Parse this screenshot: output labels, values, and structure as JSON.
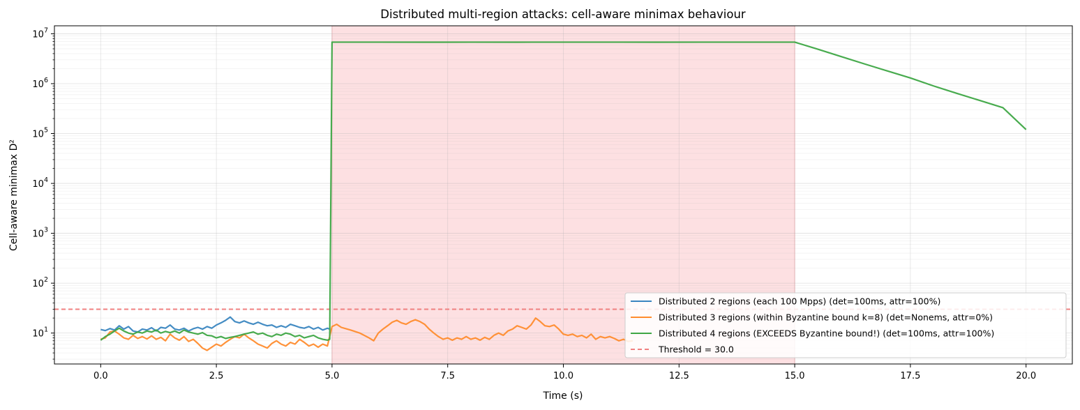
{
  "chart_data": {
    "type": "line",
    "title": "Distributed multi-region attacks: cell-aware minimax behaviour",
    "xlabel": "Time (s)",
    "ylabel": "Cell-aware minimax D²",
    "xlim": [
      -1.0,
      21.0
    ],
    "ylim_log10": [
      0.38,
      7.16
    ],
    "y_scale": "log",
    "grid": true,
    "legend_position": "lower-right",
    "x_ticks": [
      {
        "value": 0.0,
        "label": "0.0"
      },
      {
        "value": 2.5,
        "label": "2.5"
      },
      {
        "value": 5.0,
        "label": "5.0"
      },
      {
        "value": 7.5,
        "label": "7.5"
      },
      {
        "value": 10.0,
        "label": "10.0"
      },
      {
        "value": 12.5,
        "label": "12.5"
      },
      {
        "value": 15.0,
        "label": "15.0"
      },
      {
        "value": 17.5,
        "label": "17.5"
      },
      {
        "value": 20.0,
        "label": "20.0"
      }
    ],
    "y_ticks": [
      {
        "value": 10,
        "base": "10",
        "exp": "1"
      },
      {
        "value": 100,
        "base": "10",
        "exp": "2"
      },
      {
        "value": 1000,
        "base": "10",
        "exp": "3"
      },
      {
        "value": 10000,
        "base": "10",
        "exp": "4"
      },
      {
        "value": 100000,
        "base": "10",
        "exp": "5"
      },
      {
        "value": 1000000,
        "base": "10",
        "exp": "6"
      },
      {
        "value": 10000000,
        "base": "10",
        "exp": "7"
      }
    ],
    "attack_window": {
      "start": 5.0,
      "end": 15.0,
      "color": "#fde0e2"
    },
    "threshold": {
      "value": 30.0,
      "label": "Threshold = 30.0",
      "color": "#f08080"
    },
    "series": [
      {
        "name": "Distributed 2 regions (each 100 Mpps) (det=100ms, attr=100%)",
        "color": "#3a86c0",
        "points": [
          [
            0.0,
            11.8
          ],
          [
            0.1,
            11.2
          ],
          [
            0.2,
            12.3
          ],
          [
            0.3,
            11.5
          ],
          [
            0.4,
            14.0
          ],
          [
            0.5,
            12.0
          ],
          [
            0.6,
            13.5
          ],
          [
            0.7,
            11.0
          ],
          [
            0.8,
            10.5
          ],
          [
            0.9,
            12.0
          ],
          [
            1.0,
            11.5
          ],
          [
            1.1,
            12.8
          ],
          [
            1.2,
            11.0
          ],
          [
            1.3,
            13.0
          ],
          [
            1.4,
            12.5
          ],
          [
            1.5,
            14.5
          ],
          [
            1.6,
            12.0
          ],
          [
            1.7,
            11.5
          ],
          [
            1.8,
            12.5
          ],
          [
            1.9,
            11.0
          ],
          [
            2.0,
            12.2
          ],
          [
            2.1,
            13.0
          ],
          [
            2.2,
            12.0
          ],
          [
            2.3,
            13.5
          ],
          [
            2.4,
            12.5
          ],
          [
            2.5,
            14.5
          ],
          [
            2.6,
            16.0
          ],
          [
            2.7,
            18.0
          ],
          [
            2.8,
            21.0
          ],
          [
            2.9,
            17.0
          ],
          [
            3.0,
            16.0
          ],
          [
            3.1,
            17.5
          ],
          [
            3.2,
            16.0
          ],
          [
            3.3,
            15.0
          ],
          [
            3.4,
            16.5
          ],
          [
            3.5,
            15.0
          ],
          [
            3.6,
            14.0
          ],
          [
            3.7,
            14.5
          ],
          [
            3.8,
            13.0
          ],
          [
            3.9,
            14.0
          ],
          [
            4.0,
            13.0
          ],
          [
            4.1,
            15.0
          ],
          [
            4.2,
            14.0
          ],
          [
            4.3,
            13.0
          ],
          [
            4.4,
            12.5
          ],
          [
            4.5,
            13.5
          ],
          [
            4.6,
            12.0
          ],
          [
            4.7,
            13.0
          ],
          [
            4.8,
            11.5
          ],
          [
            4.9,
            12.5
          ],
          [
            4.95,
            12.0
          ]
        ]
      },
      {
        "name": "Distributed 3 regions (within Byzantine bound k=8) (det=Nonems, attr=0%)",
        "color": "#ff8c2e",
        "points": [
          [
            0.0,
            7.5
          ],
          [
            0.1,
            8.0
          ],
          [
            0.2,
            10.5
          ],
          [
            0.3,
            11.0
          ],
          [
            0.4,
            9.5
          ],
          [
            0.5,
            8.0
          ],
          [
            0.6,
            7.5
          ],
          [
            0.7,
            9.0
          ],
          [
            0.8,
            7.8
          ],
          [
            0.9,
            8.5
          ],
          [
            1.0,
            7.6
          ],
          [
            1.1,
            8.8
          ],
          [
            1.2,
            7.5
          ],
          [
            1.3,
            8.2
          ],
          [
            1.4,
            7.0
          ],
          [
            1.5,
            9.5
          ],
          [
            1.6,
            8.0
          ],
          [
            1.7,
            7.2
          ],
          [
            1.8,
            8.5
          ],
          [
            1.9,
            6.8
          ],
          [
            2.0,
            7.5
          ],
          [
            2.1,
            6.2
          ],
          [
            2.2,
            5.0
          ],
          [
            2.3,
            4.5
          ],
          [
            2.4,
            5.2
          ],
          [
            2.5,
            6.0
          ],
          [
            2.6,
            5.5
          ],
          [
            2.7,
            6.5
          ],
          [
            2.8,
            7.5
          ],
          [
            2.9,
            8.5
          ],
          [
            3.0,
            8.0
          ],
          [
            3.1,
            9.5
          ],
          [
            3.2,
            8.0
          ],
          [
            3.3,
            7.0
          ],
          [
            3.4,
            6.0
          ],
          [
            3.5,
            5.5
          ],
          [
            3.6,
            5.0
          ],
          [
            3.7,
            6.2
          ],
          [
            3.8,
            7.0
          ],
          [
            3.9,
            6.0
          ],
          [
            4.0,
            5.5
          ],
          [
            4.1,
            6.5
          ],
          [
            4.2,
            6.0
          ],
          [
            4.3,
            7.5
          ],
          [
            4.4,
            6.5
          ],
          [
            4.5,
            5.5
          ],
          [
            4.6,
            6.0
          ],
          [
            4.7,
            5.2
          ],
          [
            4.8,
            6.0
          ],
          [
            4.9,
            5.5
          ],
          [
            5.0,
            13.5
          ],
          [
            5.1,
            15.0
          ],
          [
            5.2,
            13.0
          ],
          [
            5.4,
            11.5
          ],
          [
            5.6,
            10.0
          ],
          [
            5.8,
            8.0
          ],
          [
            5.9,
            7.0
          ],
          [
            6.0,
            10.0
          ],
          [
            6.1,
            12.0
          ],
          [
            6.2,
            14.0
          ],
          [
            6.3,
            16.5
          ],
          [
            6.4,
            18.0
          ],
          [
            6.5,
            16.0
          ],
          [
            6.6,
            15.0
          ],
          [
            6.7,
            17.0
          ],
          [
            6.8,
            18.5
          ],
          [
            6.9,
            17.0
          ],
          [
            7.0,
            15.0
          ],
          [
            7.1,
            12.0
          ],
          [
            7.2,
            10.0
          ],
          [
            7.3,
            8.5
          ],
          [
            7.4,
            7.5
          ],
          [
            7.5,
            8.0
          ],
          [
            7.6,
            7.2
          ],
          [
            7.7,
            8.0
          ],
          [
            7.8,
            7.5
          ],
          [
            7.9,
            8.5
          ],
          [
            8.0,
            7.5
          ],
          [
            8.1,
            8.0
          ],
          [
            8.2,
            7.2
          ],
          [
            8.3,
            8.2
          ],
          [
            8.4,
            7.5
          ],
          [
            8.5,
            9.0
          ],
          [
            8.6,
            10.0
          ],
          [
            8.7,
            9.0
          ],
          [
            8.8,
            11.0
          ],
          [
            8.9,
            12.0
          ],
          [
            9.0,
            14.0
          ],
          [
            9.1,
            13.0
          ],
          [
            9.2,
            12.0
          ],
          [
            9.3,
            14.5
          ],
          [
            9.4,
            20.0
          ],
          [
            9.5,
            17.0
          ],
          [
            9.6,
            14.0
          ],
          [
            9.7,
            13.5
          ],
          [
            9.8,
            14.5
          ],
          [
            9.9,
            12.0
          ],
          [
            10.0,
            9.5
          ],
          [
            10.1,
            9.0
          ],
          [
            10.2,
            9.5
          ],
          [
            10.3,
            8.5
          ],
          [
            10.4,
            9.0
          ],
          [
            10.5,
            8.0
          ],
          [
            10.6,
            9.5
          ],
          [
            10.7,
            7.5
          ],
          [
            10.8,
            8.5
          ],
          [
            10.9,
            8.0
          ],
          [
            11.0,
            8.5
          ],
          [
            11.1,
            7.8
          ],
          [
            11.2,
            7.0
          ],
          [
            11.3,
            7.5
          ],
          [
            11.4,
            6.8
          ],
          [
            11.5,
            7.0
          ]
        ]
      },
      {
        "name": "Distributed 4 regions (EXCEEDS Byzantine bound!) (det=100ms, attr=100%)",
        "color": "#3ea645",
        "points": [
          [
            0.0,
            7.2
          ],
          [
            0.1,
            8.5
          ],
          [
            0.2,
            9.5
          ],
          [
            0.3,
            11.0
          ],
          [
            0.4,
            12.5
          ],
          [
            0.5,
            11.0
          ],
          [
            0.6,
            10.0
          ],
          [
            0.7,
            9.5
          ],
          [
            0.8,
            10.5
          ],
          [
            0.9,
            10.0
          ],
          [
            1.0,
            11.0
          ],
          [
            1.1,
            10.5
          ],
          [
            1.2,
            11.5
          ],
          [
            1.3,
            10.0
          ],
          [
            1.4,
            10.8
          ],
          [
            1.5,
            10.2
          ],
          [
            1.6,
            11.0
          ],
          [
            1.7,
            10.0
          ],
          [
            1.8,
            11.5
          ],
          [
            1.9,
            10.5
          ],
          [
            2.0,
            10.0
          ],
          [
            2.1,
            9.5
          ],
          [
            2.2,
            10.2
          ],
          [
            2.3,
            9.0
          ],
          [
            2.4,
            8.8
          ],
          [
            2.5,
            8.0
          ],
          [
            2.6,
            8.5
          ],
          [
            2.7,
            7.8
          ],
          [
            2.8,
            8.2
          ],
          [
            2.9,
            8.5
          ],
          [
            3.0,
            9.0
          ],
          [
            3.1,
            9.5
          ],
          [
            3.2,
            10.0
          ],
          [
            3.3,
            10.5
          ],
          [
            3.4,
            9.5
          ],
          [
            3.5,
            10.0
          ],
          [
            3.6,
            9.0
          ],
          [
            3.7,
            8.5
          ],
          [
            3.8,
            9.5
          ],
          [
            3.9,
            9.0
          ],
          [
            4.0,
            10.0
          ],
          [
            4.1,
            9.5
          ],
          [
            4.2,
            8.5
          ],
          [
            4.3,
            9.0
          ],
          [
            4.4,
            8.0
          ],
          [
            4.5,
            8.5
          ],
          [
            4.6,
            9.0
          ],
          [
            4.7,
            8.0
          ],
          [
            4.8,
            7.5
          ],
          [
            4.9,
            7.2
          ],
          [
            4.95,
            7.5
          ],
          [
            5.0,
            6800000
          ],
          [
            6.0,
            6800000
          ],
          [
            7.0,
            6780000
          ],
          [
            8.0,
            6800000
          ],
          [
            9.0,
            6790000
          ],
          [
            10.0,
            6800000
          ],
          [
            11.0,
            6800000
          ],
          [
            12.0,
            6790000
          ],
          [
            13.0,
            6800000
          ],
          [
            14.0,
            6800000
          ],
          [
            15.0,
            6800000
          ],
          [
            15.5,
            4900000
          ],
          [
            16.0,
            3500000
          ],
          [
            16.5,
            2500000
          ],
          [
            17.0,
            1800000
          ],
          [
            17.5,
            1300000
          ],
          [
            18.0,
            900000
          ],
          [
            18.5,
            640000
          ],
          [
            19.0,
            460000
          ],
          [
            19.5,
            330000
          ],
          [
            20.0,
            120000
          ]
        ]
      }
    ]
  }
}
